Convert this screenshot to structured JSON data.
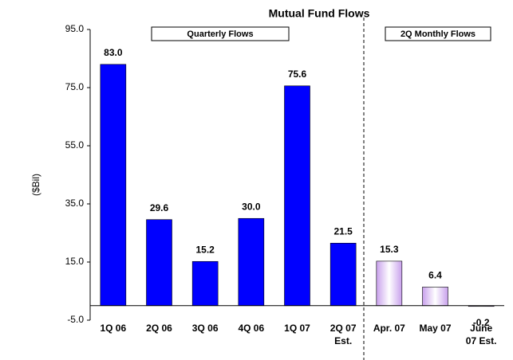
{
  "chart_data": {
    "type": "bar",
    "title": "Mutual Fund Flows",
    "y_label": "($Bil)",
    "annotations": [
      "Quarterly Flows",
      "2Q Monthly Flows"
    ],
    "categories": [
      "1Q 06",
      "2Q 06",
      "3Q 06",
      "4Q 06",
      "1Q 07",
      "2Q 07\nEst.",
      "Apr. 07",
      "May 07",
      "June\n07 Est."
    ],
    "values": [
      83.0,
      29.6,
      15.2,
      30.0,
      75.6,
      21.5,
      15.3,
      6.4,
      -0.2
    ],
    "value_labels": [
      "83.0",
      "29.6",
      "15.2",
      "30.0",
      "75.6",
      "21.5",
      "15.3",
      "6.4",
      "-0.2"
    ],
    "colors": [
      "#0000ff",
      "#0000ff",
      "#0000ff",
      "#0000ff",
      "#0000ff",
      "#0000ff",
      "#c8a0ec",
      "#c8a0ec",
      "#c8a0ec"
    ],
    "ylim": [
      -5,
      95
    ],
    "yticks": [
      {
        "value": -5,
        "label": "-5.0"
      },
      {
        "value": 15,
        "label": "15.0"
      },
      {
        "value": 35,
        "label": "35.0"
      },
      {
        "value": 55,
        "label": "55.0"
      },
      {
        "value": 75,
        "label": "75.0"
      },
      {
        "value": 95,
        "label": "95.0"
      }
    ],
    "grid": false
  }
}
